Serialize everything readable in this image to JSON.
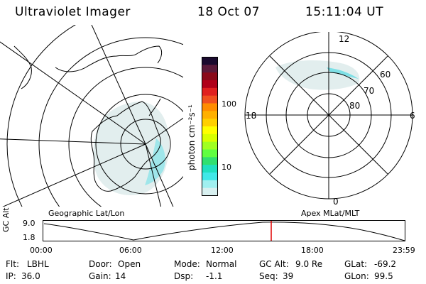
{
  "header": {
    "title": "Ultraviolet Imager",
    "date": "18 Oct 07",
    "time": "15:11:04 UT"
  },
  "colorbar": {
    "unit_label": "photon cm⁻²s⁻¹",
    "ticks": [
      "100",
      "10"
    ],
    "colors": [
      "#1a0a2e",
      "#5a1a3a",
      "#8a0a1a",
      "#b0001a",
      "#e02020",
      "#f05020",
      "#ff8c00",
      "#ffb000",
      "#ffd000",
      "#ffff00",
      "#d8ff00",
      "#a0ff20",
      "#60ff40",
      "#30e070",
      "#20e0c0",
      "#40e8e8",
      "#a0f0f0",
      "#d8f0f0"
    ]
  },
  "left_panel": {
    "caption": "Geographic Lat/Lon"
  },
  "right_panel": {
    "caption": "Apex MLat/MLT",
    "mlt_labels": {
      "top": "12",
      "left": "18",
      "right": "6",
      "bottom": "0"
    },
    "lat_labels": [
      "60",
      "70",
      "80"
    ]
  },
  "altitude_plot": {
    "ylabel": "GC Alt",
    "yticks": [
      "9.0",
      "1.8"
    ],
    "xticks": [
      "00:00",
      "06:00",
      "12:00",
      "18:00",
      "23:59"
    ],
    "current_marker_color": "#e00000"
  },
  "status": {
    "row1": [
      {
        "key": "Flt:",
        "value": "LBHL"
      },
      {
        "key": "Door:",
        "value": "Open"
      },
      {
        "key": "Mode:",
        "value": "Normal"
      },
      {
        "key": "GC Alt:",
        "value": "9.0 Re"
      },
      {
        "key": "GLat:",
        "value": "-69.2"
      }
    ],
    "row2": [
      {
        "key": "IP:",
        "value": "36.0"
      },
      {
        "key": "Gain:",
        "value": "14"
      },
      {
        "key": "Dsp:",
        "value": "-1.1"
      },
      {
        "key": "Seq:",
        "value": "39"
      },
      {
        "key": "GLon:",
        "value": "99.5"
      }
    ]
  }
}
